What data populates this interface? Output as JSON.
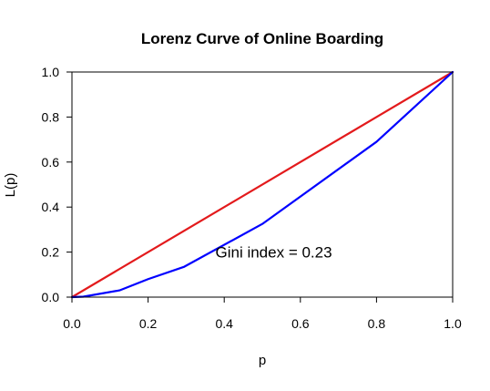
{
  "chart_data": {
    "type": "line",
    "title": "Lorenz Curve of Online Boarding",
    "xlabel": "p",
    "ylabel": "L(p)",
    "xlim": [
      0,
      1
    ],
    "ylim": [
      0,
      1
    ],
    "x_ticks": [
      "0.0",
      "0.2",
      "0.4",
      "0.6",
      "0.8",
      "1.0"
    ],
    "y_ticks": [
      "0.0",
      "0.2",
      "0.4",
      "0.6",
      "0.8",
      "1.0"
    ],
    "grid": false,
    "series": [
      {
        "color": "#e31a1c",
        "x": [
          0,
          1
        ],
        "y": [
          0,
          1
        ]
      },
      {
        "color": "#0000ff",
        "x": [
          0,
          0.03,
          0.125,
          0.2,
          0.295,
          0.5,
          0.8,
          1.0
        ],
        "y": [
          0,
          0.002,
          0.03,
          0.08,
          0.135,
          0.325,
          0.69,
          1.0
        ]
      }
    ],
    "annotations": [
      {
        "text": "Gini index = 0.23",
        "x": 0.53,
        "y": 0.2
      }
    ]
  }
}
